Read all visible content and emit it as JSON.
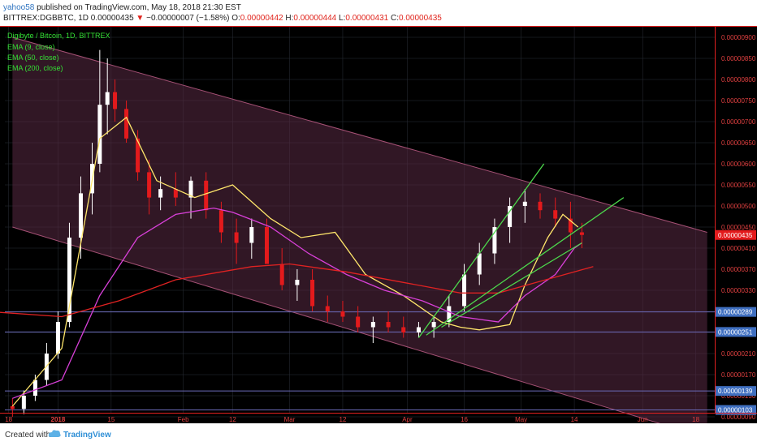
{
  "header": {
    "user": "yahoo58",
    "published_text": "published on TradingView.com, May 18, 2018 21:30 EST",
    "symbol": "BITTREX:DGBBTC, 1D",
    "last_value": "0.00000435",
    "change_text": "−0.00000007 (−1.58%)",
    "o_label": "O:",
    "o_value": "0.00000442",
    "h_label": "H:",
    "h_value": "0.00000444",
    "l_label": "L:",
    "l_value": "0.00000431",
    "c_label": "C:",
    "c_value": "0.00000435"
  },
  "legend": {
    "title": "Digibyte / Bitcoin, 1D, BITTREX",
    "ema9": "EMA (9, close)",
    "ema50": "EMA (50, close)",
    "ema200": "EMA (200, close)"
  },
  "footer": {
    "created_with": "Created with",
    "brand": "TradingView"
  },
  "colors": {
    "background": "#000000",
    "grid": "#2b2f38",
    "up_candle": "#ffffff",
    "down_candle": "#e31a1c",
    "ema9": "#ffe66b",
    "ema50": "#d840d8",
    "ema200": "#e02222",
    "trendline": "#4cd84c",
    "channel_fill": "#5a2a44",
    "channel_edge": "#a45074",
    "hline": "#6a6ab8",
    "price_badge": "#e31a1c",
    "level_badge": "#3f6fc0",
    "legend_text": "#33e033",
    "axis_text": "#e04040"
  },
  "chart_data": {
    "type": "candlestick",
    "x_axis_labels": [
      "18",
      "2018",
      "15",
      "Feb",
      "12",
      "Mar",
      "12",
      "Apr",
      "16",
      "May",
      "14",
      "Jun",
      "18"
    ],
    "y_axis_labels": [
      "0.00000900",
      "0.00000850",
      "0.00000800",
      "0.00000750",
      "0.00000700",
      "0.00000650",
      "0.00000600",
      "0.00000550",
      "0.00000500",
      "0.00000450",
      "0.00000410",
      "0.00000370",
      "0.00000330",
      "0.00000290",
      "0.00000250",
      "0.00000210",
      "0.00000170",
      "0.00000130",
      "0.00000090",
      "0.00000050"
    ],
    "ylim": [
      4e-07,
      9.2e-07
    ],
    "current_price": "0.00000435",
    "horizontal_levels": [
      "0.00000289",
      "0.00000251",
      "0.00000139",
      "0.00000103"
    ],
    "series": [
      {
        "name": "EMA (9, close)",
        "x": [
          -13,
          0,
          10,
          17,
          25,
          35,
          45,
          55,
          63,
          72,
          80,
          90,
          100,
          105,
          110,
          118,
          122,
          128,
          132,
          136
        ],
        "y": [
          1.1e-06,
          2.2e-06,
          6.6e-06,
          7.1e-06,
          5.6e-06,
          5.2e-06,
          5.5e-06,
          4.7e-06,
          4.3e-06,
          4.4e-06,
          3.6e-06,
          3.2e-06,
          2.7e-06,
          2.6e-06,
          2.55e-06,
          2.65e-06,
          3.4e-06,
          4.3e-06,
          4.8e-06,
          4.5e-06
        ]
      },
      {
        "name": "EMA (50, close)",
        "x": [
          -13,
          0,
          10,
          20,
          30,
          40,
          45,
          55,
          65,
          75,
          85,
          95,
          105,
          115,
          122,
          130,
          135,
          137
        ],
        "y": [
          1.25e-06,
          1.6e-06,
          3.2e-06,
          4.3e-06,
          4.8e-06,
          4.95e-06,
          4.85e-06,
          4.5e-06,
          4e-06,
          3.6e-06,
          3.3e-06,
          3.1e-06,
          2.8e-06,
          2.7e-06,
          3.2e-06,
          3.6e-06,
          4.1e-06,
          4.2e-06
        ]
      },
      {
        "name": "EMA (200, close)",
        "x": [
          -20,
          0,
          15,
          30,
          50,
          60,
          75,
          90,
          105,
          115,
          125,
          135,
          140
        ],
        "y": [
          2.9e-06,
          2.8e-06,
          3.1e-06,
          3.5e-06,
          3.75e-06,
          3.8e-06,
          3.65e-06,
          3.45e-06,
          3.25e-06,
          3.25e-06,
          3.45e-06,
          3.65e-06,
          3.75e-06
        ]
      }
    ],
    "trendlines": [
      {
        "x": [
          94,
          127
        ],
        "y": [
          2.4e-06,
          6e-06
        ]
      },
      {
        "x": [
          96,
          148
        ],
        "y": [
          2.45e-06,
          5.2e-06
        ]
      },
      {
        "x": [
          100,
          137
        ],
        "y": [
          2.6e-06,
          4.2e-06
        ]
      }
    ],
    "channel": {
      "upper": {
        "x": [
          -13,
          170
        ],
        "y": [
          9e-06,
          4.4e-06
        ]
      },
      "lower": {
        "x": [
          -13,
          170
        ],
        "y": [
          4.5e-06,
          5e-07
        ]
      }
    },
    "candles": {
      "x": [
        -13,
        -10,
        -7,
        -4,
        -1,
        2,
        5,
        8,
        10,
        12,
        14,
        17,
        20,
        23,
        26,
        30,
        34,
        38,
        42,
        46,
        50,
        54,
        58,
        62,
        66,
        70,
        74,
        78,
        82,
        86,
        90,
        94,
        98,
        102,
        106,
        110,
        114,
        118,
        122,
        126,
        130,
        134,
        137
      ],
      "open": [
        1.1e-06,
        1.05e-06,
        1.3e-06,
        1.6e-06,
        2.1e-06,
        2.7e-06,
        4.3e-06,
        5.3e-06,
        6e-06,
        7.4e-06,
        7.7e-06,
        7.3e-06,
        6.6e-06,
        5.8e-06,
        5.2e-06,
        5.4e-06,
        5.2e-06,
        5.6e-06,
        4.9e-06,
        4.4e-06,
        4.2e-06,
        4.5e-06,
        3.8e-06,
        3.4e-06,
        3.5e-06,
        3e-06,
        2.9e-06,
        2.8e-06,
        2.6e-06,
        2.7e-06,
        2.6e-06,
        2.5e-06,
        2.6e-06,
        2.7e-06,
        3e-06,
        3.6e-06,
        4e-06,
        4.5e-06,
        5e-06,
        5.1e-06,
        4.9e-06,
        4.7e-06,
        4.4e-06
      ],
      "high": [
        1.25e-06,
        1.4e-06,
        1.7e-06,
        2.3e-06,
        2.9e-06,
        4.6e-06,
        5.7e-06,
        6.5e-06,
        8.7e-06,
        8.5e-06,
        8e-06,
        7.5e-06,
        6.8e-06,
        6.1e-06,
        5.7e-06,
        5.8e-06,
        5.7e-06,
        5.8e-06,
        5.1e-06,
        4.7e-06,
        4.7e-06,
        4.7e-06,
        4.1e-06,
        3.7e-06,
        3.7e-06,
        3.2e-06,
        3.1e-06,
        3e-06,
        2.8e-06,
        2.9e-06,
        2.8e-06,
        2.7e-06,
        2.8e-06,
        3.2e-06,
        3.8e-06,
        4.2e-06,
        4.7e-06,
        5.2e-06,
        5.4e-06,
        5.3e-06,
        5.2e-06,
        5.1e-06,
        4.6e-06
      ],
      "low": [
        9e-07,
        9.5e-07,
        1.2e-06,
        1.5e-06,
        2e-06,
        2.6e-06,
        3.9e-06,
        4.8e-06,
        5.8e-06,
        6.7e-06,
        7e-06,
        6.5e-06,
        5.6e-06,
        4.8e-06,
        4.9e-06,
        5e-06,
        4.7e-06,
        4.7e-06,
        4.2e-06,
        3.8e-06,
        3.9e-06,
        3.9e-06,
        3.3e-06,
        3.1e-06,
        2.9e-06,
        2.7e-06,
        2.7e-06,
        2.5e-06,
        2.3e-06,
        2.5e-06,
        2.4e-06,
        2.4e-06,
        2.4e-06,
        2.6e-06,
        2.9e-06,
        3.4e-06,
        3.8e-06,
        4.2e-06,
        4.6e-06,
        4.7e-06,
        4.5e-06,
        4.1e-06,
        4.1e-06
      ],
      "close": [
        1.05e-06,
        1.3e-06,
        1.6e-06,
        2.1e-06,
        2.7e-06,
        4.3e-06,
        5.3e-06,
        6e-06,
        7.4e-06,
        7.7e-06,
        7.3e-06,
        6.6e-06,
        5.8e-06,
        5.2e-06,
        5.4e-06,
        5.2e-06,
        5.6e-06,
        4.9e-06,
        4.4e-06,
        4.2e-06,
        4.5e-06,
        3.8e-06,
        3.4e-06,
        3.5e-06,
        3e-06,
        2.9e-06,
        2.8e-06,
        2.6e-06,
        2.7e-06,
        2.6e-06,
        2.5e-06,
        2.6e-06,
        2.7e-06,
        3e-06,
        3.6e-06,
        4e-06,
        4.5e-06,
        5e-06,
        5.1e-06,
        4.9e-06,
        4.7e-06,
        4.4e-06,
        4.35e-06
      ]
    }
  }
}
